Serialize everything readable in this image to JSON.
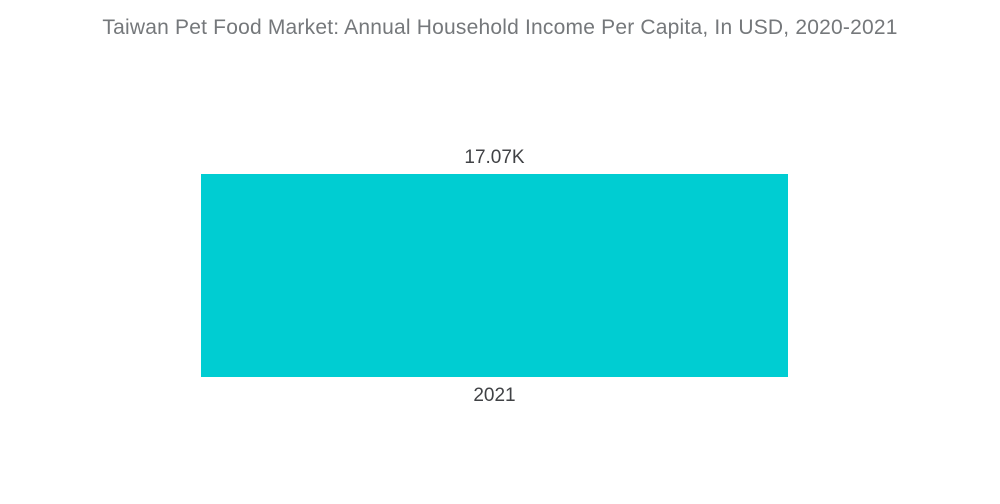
{
  "chart_data": {
    "type": "bar",
    "title": "Taiwan Pet Food Market: Annual Household Income Per Capita, In USD, 2020-2021",
    "categories": [
      "2021"
    ],
    "values": [
      17070
    ],
    "value_labels": [
      "17.07K"
    ],
    "xlabel": "",
    "ylabel": "",
    "ylim": [
      0,
      21600
    ],
    "grid": false,
    "legend": false,
    "colors": {
      "bar": "#00cdd2",
      "title": "#75787b",
      "labels": "#404245",
      "background": "#ffffff"
    }
  }
}
